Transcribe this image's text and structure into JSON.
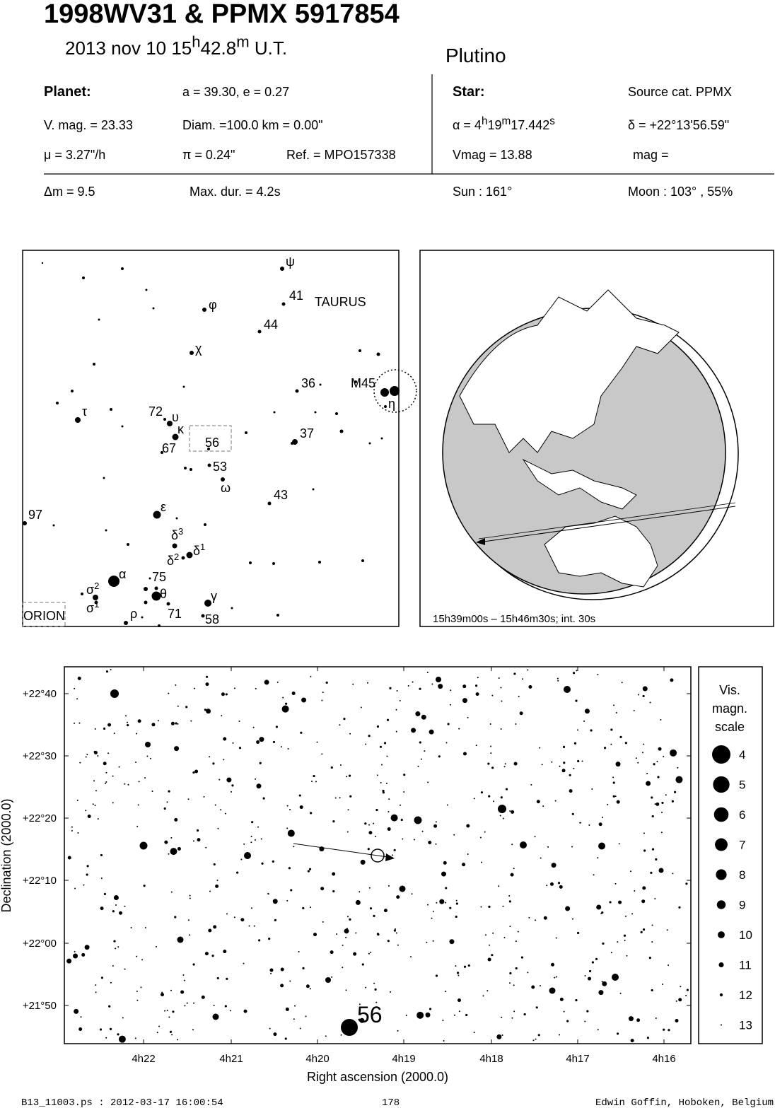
{
  "header": {
    "title": "1998WV31  &  PPMX 5917854",
    "date": [
      "2013 nov 10  15",
      "h",
      "42.8",
      "m",
      " U.T."
    ],
    "class": "Plutino"
  },
  "info": {
    "planet_label": "Planet:",
    "orbit": "a = 39.30, e = 0.27",
    "star_label": "Star:",
    "source": "Source cat.  PPMX",
    "vmag_planet": "V. mag. = 23.33",
    "diam": "Diam. =100.0 km = 0.00\"",
    "ra": [
      "α =  4",
      "h",
      "19",
      "m",
      "17.442",
      "s"
    ],
    "dec": "δ = +22°13'56.59\"",
    "mu": "μ =  3.27\"/h",
    "pi": "π =  0.24\"",
    "ref": "Ref. = MPO157338",
    "vmag_star": "Vmag = 13.88",
    "mag": "mag =",
    "dm": "Δm = 9.5",
    "maxdur": "Max. dur. = 4.2s",
    "sun": "Sun : 161°",
    "moon": "Moon : 103° , 55%"
  },
  "finder": {
    "labels": [
      {
        "text": "ψ"
      },
      {
        "text": "41"
      },
      {
        "text": "TAURUS"
      },
      {
        "text": "φ"
      },
      {
        "text": "44"
      },
      {
        "text": "χ"
      },
      {
        "text": "36"
      },
      {
        "text": "M45"
      },
      {
        "text": "η"
      },
      {
        "text": "τ"
      },
      {
        "text": "72"
      },
      {
        "text": "υ"
      },
      {
        "text": "κ"
      },
      {
        "text": "56"
      },
      {
        "text": "37"
      },
      {
        "text": "67"
      },
      {
        "text": "53"
      },
      {
        "text": "ω"
      },
      {
        "text": "43"
      },
      {
        "text": "ε"
      },
      {
        "text": "97"
      },
      {
        "text": "δ",
        "sup": "3"
      },
      {
        "text": "δ",
        "sup": "2"
      },
      {
        "text": "δ",
        "sup": "1"
      },
      {
        "text": "α"
      },
      {
        "text": "75"
      },
      {
        "text": "σ",
        "sup": "2"
      },
      {
        "text": "θ"
      },
      {
        "text": "σ",
        "sup": "1"
      },
      {
        "text": "γ"
      },
      {
        "text": "71"
      },
      {
        "text": "ρ"
      },
      {
        "text": "58"
      },
      {
        "text": "ORION"
      }
    ]
  },
  "globe": {
    "caption": "15h39m00s – 15h46m30s; int. 30s"
  },
  "chart": {
    "yticks": [
      "+22°40",
      "+22°30",
      "+22°20",
      "+22°10",
      "+22°00",
      "+21°50"
    ],
    "xticks": [
      "4h22",
      "4h21",
      "4h20",
      "4h19",
      "4h18",
      "4h17",
      "4h16"
    ],
    "xlabel": "Right ascension (2000.0)",
    "ylabel": "Declination (2000.0)",
    "target": "56",
    "legend_title": [
      "Vis.",
      "magn.",
      "scale"
    ],
    "magnitudes": [
      4,
      5,
      6,
      7,
      8,
      9,
      10,
      11,
      12,
      13
    ]
  },
  "footer": {
    "file": "B13_11003.ps : 2012-03-17 16:00:54",
    "page": "178",
    "author": "Edwin Goffin, Hoboken, Belgium"
  }
}
